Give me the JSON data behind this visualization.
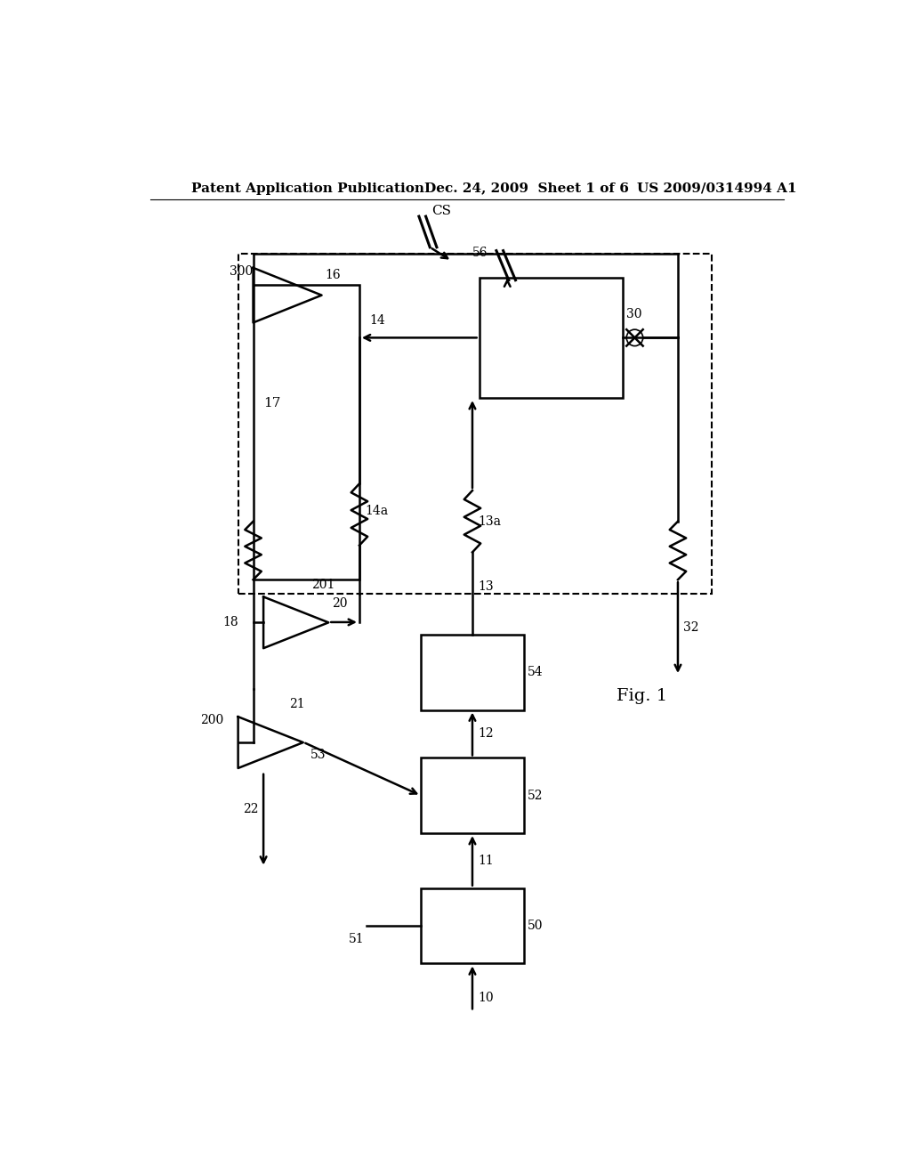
{
  "title_left": "Patent Application Publication",
  "title_center": "Dec. 24, 2009  Sheet 1 of 6",
  "title_right": "US 2009/0314994 A1",
  "fig_label": "Fig. 1",
  "background": "#ffffff"
}
